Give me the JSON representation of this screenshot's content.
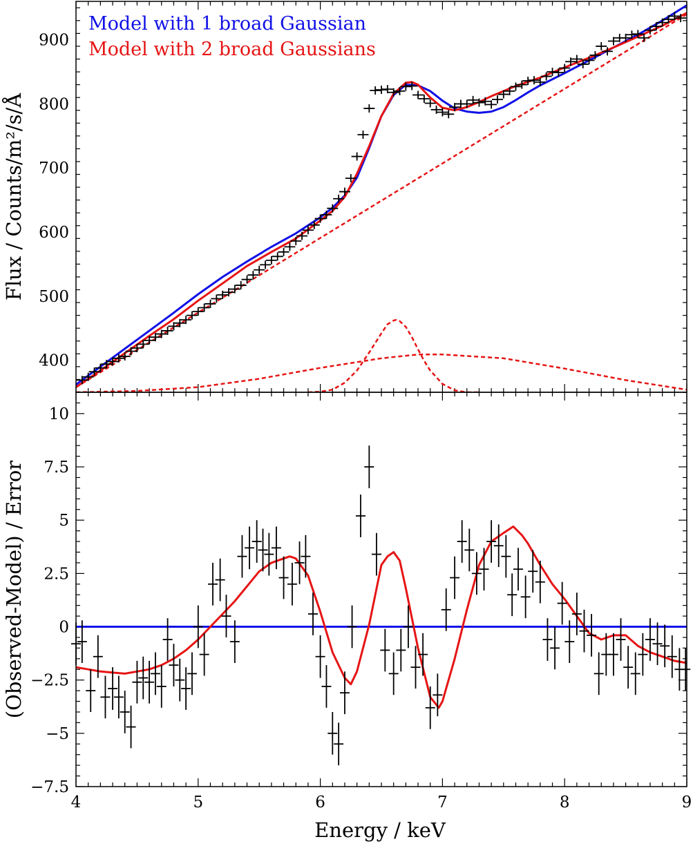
{
  "colors": {
    "model1": "#1010e6",
    "model2": "#e61414",
    "data": "#000000",
    "frame": "#000000"
  },
  "chart_data": [
    {
      "type": "line",
      "panel": "top",
      "ylabel": "Flux / Counts/m²/s/Å",
      "xlim": [
        4,
        9
      ],
      "ylim": [
        350,
        960
      ],
      "yticks": [
        400,
        500,
        600,
        700,
        800,
        900
      ],
      "legend": [
        "Model with 1 broad Gaussian",
        "Model with 2 broad Gaussians"
      ],
      "legend_position": "top-left",
      "data": {
        "x": [
          4.05,
          4.1,
          4.15,
          4.2,
          4.25,
          4.3,
          4.35,
          4.4,
          4.45,
          4.5,
          4.55,
          4.6,
          4.65,
          4.7,
          4.75,
          4.8,
          4.85,
          4.9,
          4.95,
          5.0,
          5.05,
          5.1,
          5.15,
          5.2,
          5.25,
          5.3,
          5.35,
          5.4,
          5.45,
          5.5,
          5.55,
          5.6,
          5.65,
          5.7,
          5.75,
          5.8,
          5.85,
          5.9,
          5.95,
          6.0,
          6.05,
          6.1,
          6.15,
          6.2,
          6.25,
          6.3,
          6.35,
          6.4,
          6.45,
          6.5,
          6.55,
          6.6,
          6.65,
          6.7,
          6.75,
          6.8,
          6.85,
          6.9,
          6.95,
          7.0,
          7.05,
          7.1,
          7.15,
          7.2,
          7.25,
          7.3,
          7.35,
          7.4,
          7.45,
          7.5,
          7.55,
          7.6,
          7.65,
          7.7,
          7.75,
          7.8,
          7.85,
          7.9,
          7.95,
          8.0,
          8.05,
          8.1,
          8.15,
          8.2,
          8.25,
          8.3,
          8.35,
          8.4,
          8.45,
          8.5,
          8.55,
          8.6,
          8.65,
          8.7,
          8.75,
          8.8,
          8.85,
          8.9,
          8.95
        ],
        "y": [
          369,
          374,
          382,
          388,
          394,
          398,
          403,
          406,
          414,
          419,
          425,
          431,
          436,
          441,
          446,
          453,
          458,
          463,
          470,
          476,
          482,
          488,
          496,
          502,
          506,
          511,
          517,
          526,
          533,
          541,
          549,
          556,
          562,
          569,
          577,
          586,
          594,
          603,
          611,
          621,
          627,
          637,
          652,
          663,
          684,
          718,
          752,
          793,
          821,
          822,
          823,
          818,
          820,
          827,
          828,
          814,
          808,
          801,
          791,
          787,
          784,
          795,
          800,
          800,
          806,
          802,
          804,
          799,
          807,
          815,
          820,
          827,
          830,
          836,
          837,
          834,
          843,
          850,
          849,
          856,
          866,
          870,
          862,
          868,
          876,
          890,
          882,
          898,
          903,
          903,
          908,
          909,
          903,
          915,
          921,
          927,
          932,
          937,
          934
        ]
      },
      "series": [
        {
          "name": "Model with 1 broad Gaussian",
          "x": [
            4.0,
            4.2,
            4.4,
            4.6,
            4.8,
            5.0,
            5.2,
            5.4,
            5.6,
            5.8,
            6.0,
            6.1,
            6.2,
            6.3,
            6.4,
            6.5,
            6.6,
            6.7,
            6.8,
            6.9,
            7.0,
            7.1,
            7.2,
            7.3,
            7.4,
            7.5,
            7.6,
            7.7,
            7.8,
            8.0,
            8.2,
            8.4,
            8.6,
            8.8,
            9.0
          ],
          "y": [
            362,
            390,
            418,
            446,
            474,
            503,
            530,
            554,
            577,
            598,
            623,
            638,
            657,
            685,
            731,
            781,
            814,
            830,
            829,
            820,
            805,
            793,
            788,
            786,
            788,
            795,
            806,
            818,
            829,
            848,
            868,
            888,
            908,
            930,
            954
          ]
        },
        {
          "name": "Model with 2 broad Gaussians",
          "x": [
            4.0,
            4.2,
            4.4,
            4.6,
            4.8,
            5.0,
            5.2,
            5.4,
            5.6,
            5.8,
            6.0,
            6.1,
            6.2,
            6.3,
            6.4,
            6.5,
            6.6,
            6.7,
            6.75,
            6.8,
            6.9,
            7.0,
            7.1,
            7.2,
            7.3,
            7.4,
            7.5,
            7.6,
            7.8,
            8.0,
            8.2,
            8.4,
            8.6,
            8.8,
            9.0
          ],
          "y": [
            358,
            384,
            411,
            438,
            464,
            493,
            520,
            547,
            569,
            590,
            618,
            633,
            655,
            691,
            734,
            781,
            816,
            833,
            834,
            830,
            810,
            794,
            790,
            795,
            803,
            812,
            820,
            828,
            841,
            857,
            872,
            888,
            905,
            922,
            942
          ]
        },
        {
          "name": "Continuum",
          "x": [
            4.0,
            9.0
          ],
          "y": [
            358,
            940
          ]
        },
        {
          "name": "Narrow Gaussian component",
          "x": [
            5.9,
            6.0,
            6.1,
            6.2,
            6.3,
            6.4,
            6.5,
            6.55,
            6.6,
            6.62,
            6.65,
            6.7,
            6.75,
            6.8,
            6.85,
            6.9,
            7.0,
            7.1,
            7.2,
            7.3
          ],
          "y": [
            350,
            351,
            354,
            365,
            384,
            412,
            442,
            456,
            462,
            463,
            461,
            452,
            436,
            417,
            399,
            384,
            363,
            353,
            350,
            350
          ]
        },
        {
          "name": "Broad Gaussian component",
          "x": [
            4.0,
            4.5,
            5.0,
            5.5,
            6.0,
            6.5,
            6.8,
            7.0,
            7.5,
            8.0,
            8.5,
            9.0
          ],
          "y": [
            350,
            352,
            358,
            371,
            388,
            403,
            409,
            409,
            403,
            387,
            369,
            354
          ]
        }
      ]
    },
    {
      "type": "line",
      "panel": "bottom",
      "xlabel": "Energy / keV",
      "ylabel": "(Observed-Model) / Error",
      "xlim": [
        4,
        9
      ],
      "ylim": [
        -7.5,
        11
      ],
      "xticks": [
        4,
        5,
        6,
        7,
        8,
        9
      ],
      "yticks": [
        -7.5,
        -5,
        -2.5,
        0,
        2.5,
        5,
        7.5,
        10
      ],
      "ytick_labels": [
        "−7.5",
        "−5",
        "−2.5",
        "0",
        "2.5",
        "5",
        "7.5",
        "10"
      ],
      "data": {
        "x": [
          4.0,
          4.05,
          4.12,
          4.18,
          4.24,
          4.3,
          4.35,
          4.4,
          4.45,
          4.5,
          4.55,
          4.6,
          4.65,
          4.7,
          4.75,
          4.8,
          4.85,
          4.9,
          4.95,
          5.0,
          5.05,
          5.12,
          5.18,
          5.23,
          5.3,
          5.36,
          5.42,
          5.48,
          5.53,
          5.58,
          5.64,
          5.7,
          5.77,
          5.83,
          5.88,
          5.94,
          6.0,
          6.05,
          6.1,
          6.15,
          6.2,
          6.26,
          6.33,
          6.4,
          6.46,
          6.53,
          6.6,
          6.66,
          6.72,
          6.78,
          6.84,
          6.9,
          6.96,
          7.03,
          7.1,
          7.16,
          7.22,
          7.28,
          7.34,
          7.4,
          7.46,
          7.52,
          7.57,
          7.62,
          7.68,
          7.74,
          7.8,
          7.86,
          7.92,
          7.98,
          8.04,
          8.1,
          8.16,
          8.22,
          8.28,
          8.34,
          8.4,
          8.46,
          8.52,
          8.58,
          8.64,
          8.7,
          8.76,
          8.82,
          8.88,
          8.94,
          8.99
        ],
        "y": [
          -0.8,
          -0.7,
          -3.0,
          -1.4,
          -3.3,
          -2.9,
          -3.3,
          -4.0,
          -4.7,
          -2.6,
          -2.4,
          -2.6,
          -2.2,
          -2.8,
          -0.6,
          -1.8,
          -2.5,
          -2.9,
          -2.2,
          0.0,
          -1.3,
          2.0,
          2.2,
          0.5,
          -0.7,
          3.3,
          3.7,
          4.0,
          3.6,
          3.4,
          3.7,
          2.3,
          2.0,
          3.0,
          3.3,
          0.6,
          -1.4,
          -2.8,
          -5.0,
          -5.5,
          -3.1,
          0.0,
          5.2,
          7.5,
          3.4,
          -1.1,
          -2.2,
          -1.1,
          0.0,
          -1.9,
          -1.3,
          -3.8,
          -3.2,
          0.8,
          2.3,
          4.0,
          3.6,
          2.5,
          2.7,
          4.0,
          3.8,
          3.3,
          1.5,
          2.7,
          1.4,
          2.6,
          2.1,
          -0.6,
          -1.0,
          1.1,
          -0.7,
          0.6,
          -0.2,
          -0.4,
          -2.2,
          -1.3,
          -1.3,
          -0.6,
          -1.9,
          -2.2,
          -1.3,
          -0.6,
          -0.8,
          -0.9,
          -1.4,
          -2.0,
          -2.0
        ]
      },
      "series": [
        {
          "name": "Model with 1 broad Gaussian",
          "x": [
            4.0,
            9.0
          ],
          "y": [
            0,
            0
          ]
        },
        {
          "name": "Model with 2 broad Gaussians",
          "x": [
            4.0,
            4.1,
            4.2,
            4.3,
            4.4,
            4.5,
            4.6,
            4.7,
            4.8,
            4.9,
            5.0,
            5.1,
            5.2,
            5.3,
            5.4,
            5.5,
            5.6,
            5.7,
            5.75,
            5.8,
            5.9,
            6.0,
            6.1,
            6.2,
            6.25,
            6.3,
            6.4,
            6.5,
            6.55,
            6.6,
            6.65,
            6.7,
            6.8,
            6.9,
            6.97,
            7.0,
            7.1,
            7.2,
            7.3,
            7.4,
            7.5,
            7.58,
            7.65,
            7.7,
            7.8,
            7.9,
            8.0,
            8.1,
            8.2,
            8.3,
            8.4,
            8.5,
            8.6,
            8.7,
            8.8,
            8.9,
            9.0
          ],
          "y": [
            -1.9,
            -2.0,
            -2.1,
            -2.15,
            -2.2,
            -2.1,
            -2.0,
            -1.8,
            -1.5,
            -1.1,
            -0.6,
            0.0,
            0.6,
            1.2,
            1.9,
            2.6,
            3.0,
            3.2,
            3.3,
            3.2,
            2.4,
            0.7,
            -1.2,
            -2.4,
            -2.7,
            -2.1,
            0.1,
            2.9,
            3.3,
            3.5,
            3.1,
            1.8,
            -1.0,
            -3.3,
            -3.8,
            -3.5,
            -1.5,
            0.8,
            2.9,
            4.0,
            4.4,
            4.7,
            4.3,
            3.9,
            2.9,
            2.0,
            1.3,
            0.5,
            -0.3,
            -0.6,
            -0.4,
            -0.4,
            -0.9,
            -1.2,
            -1.4,
            -1.6,
            -1.7
          ]
        }
      ]
    }
  ]
}
